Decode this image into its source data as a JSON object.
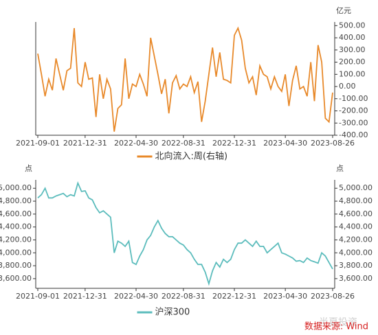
{
  "chart_data": [
    {
      "type": "line",
      "y_unit": "亿元",
      "yaxis_position": "right",
      "categories": [
        "2021-09-01",
        null,
        null,
        null,
        null,
        null,
        null,
        null,
        null,
        null,
        null,
        null,
        null,
        "2021-12-31",
        null,
        null,
        null,
        null,
        null,
        null,
        null,
        null,
        null,
        null,
        null,
        null,
        null,
        "2022-04-30",
        null,
        null,
        null,
        null,
        null,
        null,
        null,
        null,
        null,
        null,
        null,
        null,
        "2022-08-31",
        null,
        null,
        null,
        null,
        null,
        null,
        null,
        null,
        null,
        null,
        null,
        null,
        null,
        "2022-12-31",
        null,
        null,
        null,
        null,
        null,
        null,
        null,
        null,
        null,
        null,
        null,
        null,
        null,
        "2023-04-30",
        null,
        null,
        null,
        null,
        null,
        null,
        null,
        null,
        null,
        null,
        null,
        null,
        "2023-08-26"
      ],
      "series": [
        {
          "name": "北向流入:周(右轴)",
          "color": "#e8892a",
          "values": [
            270,
            100,
            -80,
            60,
            -30,
            230,
            100,
            -30,
            130,
            150,
            480,
            30,
            0,
            200,
            60,
            70,
            -250,
            100,
            -100,
            60,
            -20,
            -370,
            -180,
            -150,
            230,
            -100,
            20,
            0,
            100,
            20,
            -80,
            400,
            250,
            100,
            -60,
            60,
            -220,
            30,
            90,
            -20,
            20,
            0,
            80,
            -50,
            40,
            -290,
            -120,
            100,
            320,
            80,
            280,
            60,
            50,
            30,
            420,
            480,
            380,
            150,
            30,
            80,
            -70,
            170,
            100,
            80,
            -20,
            80,
            0,
            -40,
            100,
            -160,
            50,
            170,
            -20,
            0,
            -80,
            200,
            -120,
            340,
            200,
            -260,
            -290,
            -50
          ]
        }
      ],
      "ylim": [
        -400,
        530
      ],
      "yticks": [
        {
          "value": -400,
          "label": "-400.00"
        },
        {
          "value": -300,
          "label": "-300.00"
        },
        {
          "value": -200,
          "label": "-200.00"
        },
        {
          "value": -100,
          "label": "-100.00"
        },
        {
          "value": 0,
          "label": "0.00"
        },
        {
          "value": 100,
          "label": "100.00"
        },
        {
          "value": 200,
          "label": "200.00"
        },
        {
          "value": 300,
          "label": "300.00"
        },
        {
          "value": 400,
          "label": "400.00"
        },
        {
          "value": 500,
          "label": "500.00"
        }
      ]
    },
    {
      "type": "line",
      "y_unit": "点",
      "yaxis_position": "both",
      "categories": [
        "2021-09-01",
        null,
        null,
        null,
        null,
        null,
        null,
        null,
        null,
        null,
        null,
        null,
        null,
        "2021-12-31",
        null,
        null,
        null,
        null,
        null,
        null,
        null,
        null,
        null,
        null,
        null,
        null,
        null,
        "2022-04-30",
        null,
        null,
        null,
        null,
        null,
        null,
        null,
        null,
        null,
        null,
        null,
        null,
        "2022-08-31",
        null,
        null,
        null,
        null,
        null,
        null,
        null,
        null,
        null,
        null,
        null,
        null,
        null,
        "2022-12-31",
        null,
        null,
        null,
        null,
        null,
        null,
        null,
        null,
        null,
        null,
        null,
        null,
        null,
        "2023-04-30",
        null,
        null,
        null,
        null,
        null,
        null,
        null,
        null,
        null,
        null,
        null,
        null,
        "2023-08-26"
      ],
      "series": [
        {
          "name": "沪深300",
          "color": "#5bbcbc",
          "values": [
            4850,
            4900,
            5000,
            4850,
            4850,
            4880,
            4900,
            4920,
            4870,
            4900,
            4880,
            5080,
            4950,
            4960,
            4850,
            4820,
            4700,
            4620,
            4650,
            4600,
            4550,
            4000,
            4180,
            4150,
            4100,
            4180,
            3850,
            3820,
            3950,
            4050,
            4200,
            4270,
            4400,
            4500,
            4380,
            4300,
            4250,
            4250,
            4200,
            4150,
            4120,
            4050,
            4000,
            3900,
            3820,
            3820,
            3700,
            3520,
            3720,
            3850,
            3780,
            3900,
            3850,
            3900,
            4050,
            4150,
            4150,
            4200,
            4150,
            4100,
            4180,
            4100,
            4100,
            4000,
            4050,
            4100,
            4150,
            4000,
            3980,
            3950,
            3920,
            3870,
            3880,
            3850,
            3920,
            3880,
            3860,
            3840,
            4000,
            3950,
            3850,
            3750
          ]
        }
      ],
      "ylim": [
        3450,
        5130
      ],
      "yticks": [
        {
          "value": 3600,
          "label": "3,600.00"
        },
        {
          "value": 3800,
          "label": "3,800.00"
        },
        {
          "value": 4000,
          "label": "4,000.00"
        },
        {
          "value": 4200,
          "label": "4,200.00"
        },
        {
          "value": 4400,
          "label": "4,400.00"
        },
        {
          "value": 4600,
          "label": "4,600.00"
        },
        {
          "value": 4800,
          "label": "4,800.00"
        },
        {
          "value": 5000,
          "label": "5,000.00"
        }
      ]
    }
  ],
  "source": "数据来源: Wind",
  "watermark": "半夏投资"
}
